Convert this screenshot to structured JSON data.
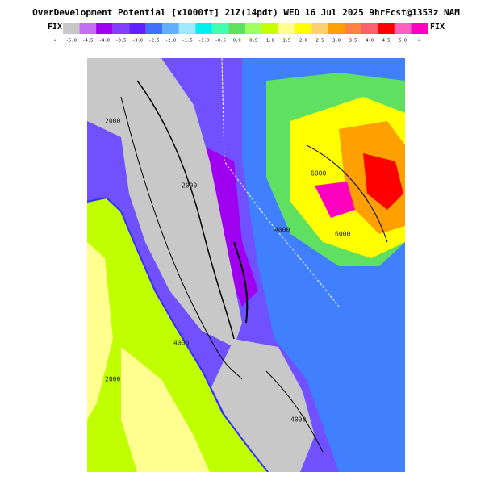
{
  "header": {
    "title": "OverDevelopment Potential [x1000ft] 21Z(14pdt) WED 16 Jul 2025 9hrFcst@1353z NAM",
    "left_tag": "FIX",
    "right_tag": "FIX"
  },
  "legend": {
    "labels": [
      "<",
      "-5.0",
      "-4.5",
      "-4.0",
      "-3.5",
      "-3.0",
      "-2.5",
      "-2.0",
      "-1.5",
      "-1.0",
      "-0.5",
      "0.0",
      "0.5",
      "1.0",
      "1.5",
      "2.0",
      "2.5",
      "3.0",
      "3.5",
      "4.0",
      "4.5",
      "5.0",
      ">"
    ],
    "colors": [
      "#c8c8c8",
      "#c070f0",
      "#a000f0",
      "#8040ff",
      "#6020ff",
      "#4070ff",
      "#60b0ff",
      "#a0e8ff",
      "#00f0f0",
      "#40ffb0",
      "#60e060",
      "#a0ff60",
      "#c8ff00",
      "#ffff90",
      "#ffff00",
      "#ffd070",
      "#ffa000",
      "#ff8040",
      "#ff6070",
      "#ff0000",
      "#ff60c0",
      "#ff00c0"
    ]
  },
  "map": {
    "contour_labels": [
      "2000",
      "2000",
      "4000",
      "4000",
      "6000",
      "6000",
      "4000",
      "2000"
    ]
  }
}
